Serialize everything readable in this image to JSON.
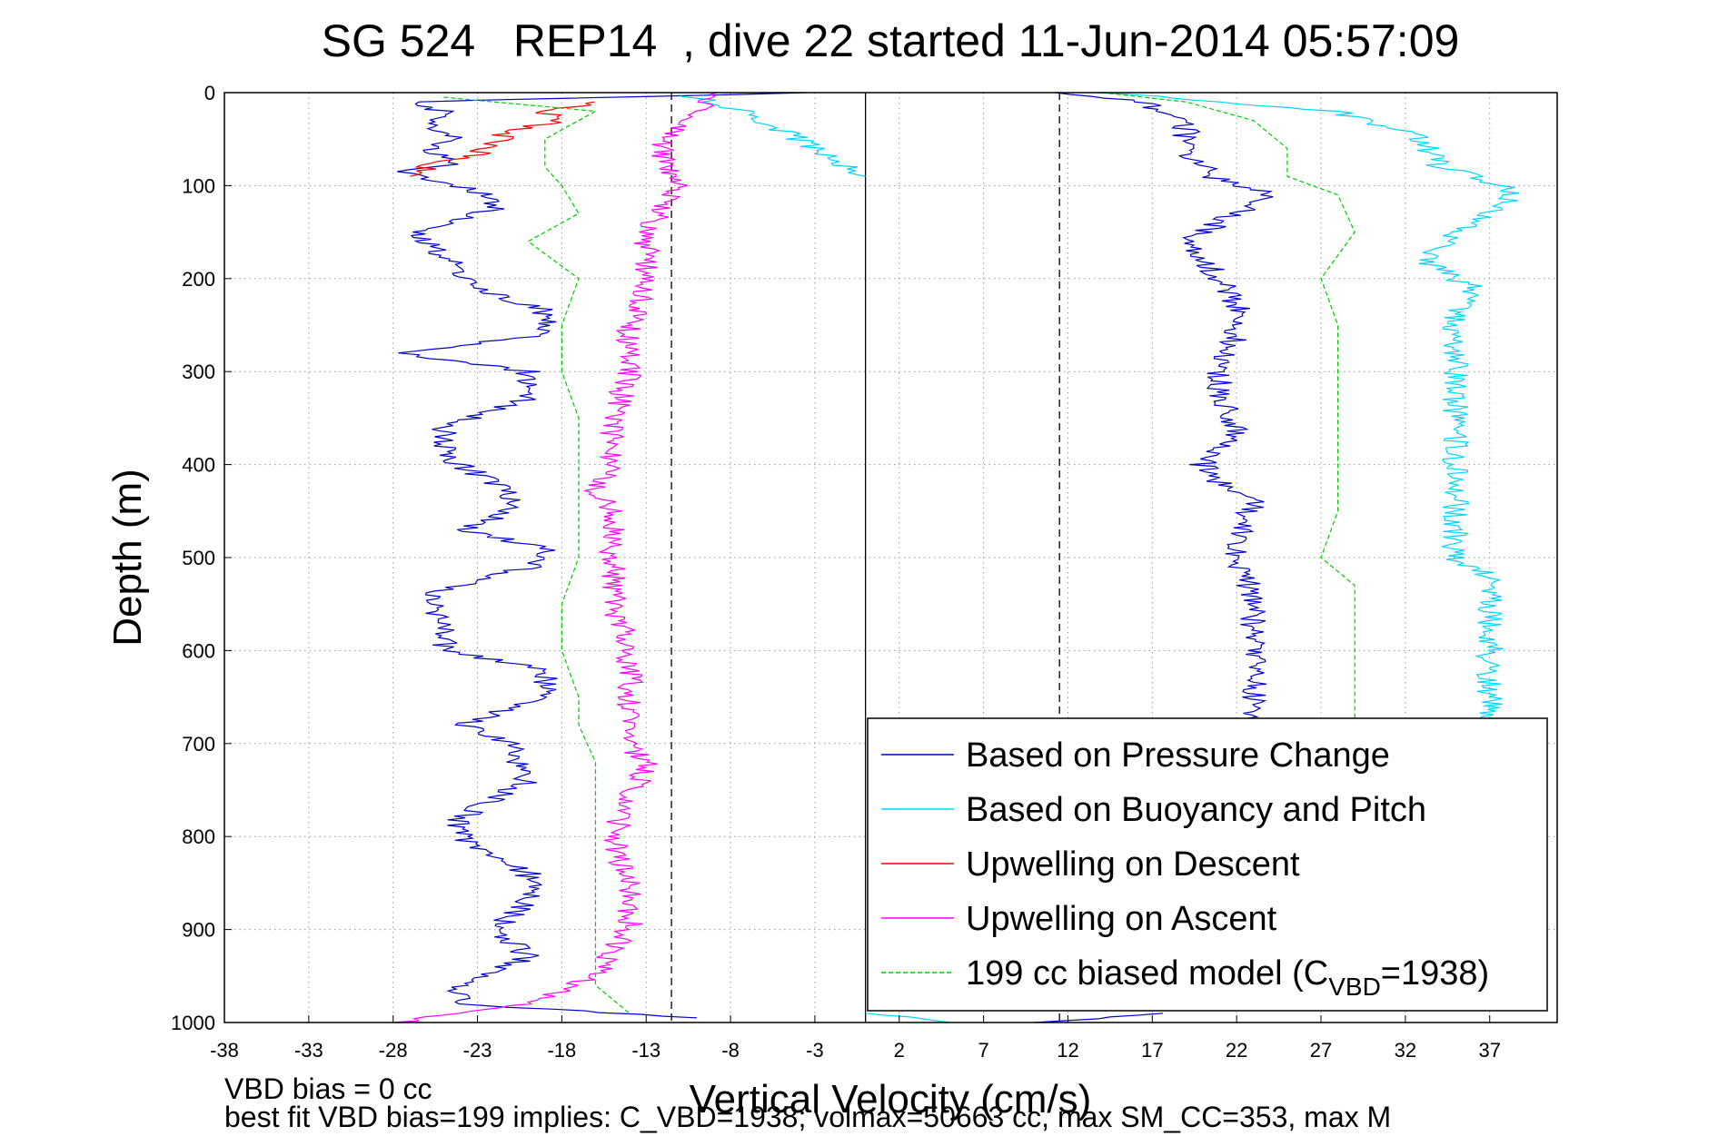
{
  "chart_data": {
    "type": "line",
    "title": "SG 524   REP14  , dive 22 started 11-Jun-2014 05:57:09",
    "xlabel": "Vertical Velocity (cm/s)",
    "ylabel": "Depth (m)",
    "xlim": [
      -38,
      41
    ],
    "ylim": [
      0,
      1000
    ],
    "y_reversed": true,
    "grid": true,
    "xticks": [
      -38,
      -33,
      -28,
      -23,
      -18,
      -13,
      -8,
      -3,
      2,
      7,
      12,
      17,
      22,
      27,
      32,
      37
    ],
    "yticks": [
      0,
      100,
      200,
      300,
      400,
      500,
      600,
      700,
      800,
      900,
      1000
    ],
    "reference_lines": [
      {
        "x": -11.5,
        "style": "dashed"
      },
      {
        "x": 0,
        "style": "solid"
      },
      {
        "x": 11.5,
        "style": "dashed"
      }
    ],
    "legend_position": "bottom-right",
    "series": [
      {
        "name": "Based on Pressure Change",
        "color": "#0000cc",
        "style": "solid",
        "segments": [
          {
            "depth": [
              0,
              10,
              20,
              35,
              50,
              60,
              75,
              85,
              95,
              105,
              125,
              150,
              175,
              210,
              235,
              260,
              280,
              300,
              330,
              360,
              390,
              410,
              430,
              450,
              470,
              490,
              510,
              540,
              570,
              600,
              620,
              650,
              680,
              700,
              740,
              780,
              800,
              840,
              870,
              900,
              930,
              960,
              980,
              995
            ],
            "velocity": [
              -3,
              -27,
              -25,
              -26,
              -24,
              -26,
              -24,
              -28,
              -25,
              -23,
              -22,
              -27,
              -25,
              -23,
              -19,
              -19,
              -28,
              -20,
              -20,
              -25,
              -25,
              -23,
              -21,
              -21,
              -24,
              -19,
              -20,
              -26,
              -25,
              -25,
              -19,
              -19,
              -24,
              -21,
              -20,
              -24,
              -24,
              -20,
              -20,
              -22,
              -20,
              -24,
              -24,
              -10
            ]
          },
          {
            "depth": [
              0,
              10,
              20,
              40,
              60,
              80,
              95,
              110,
              140,
              160,
              180,
              200,
              230,
              260,
              290,
              320,
              360,
              400,
              420,
              440,
              480,
              500,
              540,
              580,
              620,
              660,
              675
            ],
            "velocity": [
              12,
              16,
              18,
              19,
              19,
              20,
              21,
              24,
              21,
              19,
              20,
              21,
              22,
              22,
              21,
              21,
              22,
              20,
              21,
              23,
              22,
              22,
              23,
              23,
              23,
              23,
              23
            ]
          },
          {
            "depth": [
              990,
              1000
            ],
            "velocity": [
              18,
              10
            ]
          }
        ]
      },
      {
        "name": "Based on Buoyancy and Pitch",
        "color": "#00d4ff",
        "style": "solid",
        "segments": [
          {
            "depth": [
              2,
              20,
              40,
              60,
              90
            ],
            "velocity": [
              -11,
              -7,
              -5,
              -3,
              0
            ]
          },
          {
            "depth": [
              0,
              20,
              50,
              80,
              100,
              120,
              150,
              180,
              210,
              240,
              280,
              320,
              360,
              400,
              430,
              460,
              500,
              520,
              560,
              600,
              640,
              675
            ],
            "velocity": [
              14,
              28,
              33,
              34,
              38,
              38,
              35,
              33,
              36,
              35,
              35,
              35,
              35,
              35,
              35,
              35,
              35,
              37,
              37,
              37,
              37,
              37
            ]
          },
          {
            "depth": [
              990,
              1000
            ],
            "velocity": [
              0,
              5
            ]
          }
        ]
      },
      {
        "name": "Upwelling on Descent",
        "color": "#ff0000",
        "style": "solid",
        "segments": [
          {
            "depth": [
              10,
              15,
              20,
              30,
              40,
              55,
              65,
              70,
              80,
              90
            ],
            "velocity": [
              -16,
              -17,
              -19,
              -18,
              -21,
              -22,
              -23,
              -24,
              -26,
              -27
            ]
          }
        ]
      },
      {
        "name": "Upwelling on Ascent",
        "color": "#ff00ff",
        "style": "solid",
        "segments": [
          {
            "depth": [
              0,
              20,
              50,
              80,
              100,
              150,
              200,
              250,
              300,
              350,
              400,
              430,
              450,
              500,
              550,
              600,
              650,
              700,
              720,
              760,
              800,
              850,
              900,
              950,
              980,
              1000
            ],
            "velocity": [
              -9,
              -10,
              -12,
              -12,
              -11,
              -13,
              -13,
              -14,
              -14,
              -15,
              -15,
              -16,
              -15,
              -15,
              -15,
              -14,
              -14,
              -14,
              -13,
              -14,
              -15,
              -14,
              -14,
              -16,
              -20,
              -28
            ]
          }
        ]
      },
      {
        "name": "199 cc biased model",
        "legend_suffix": "(CVBD=1938)",
        "color": "#00cc00",
        "style": "dashed",
        "segments": [
          {
            "depth": [
              5,
              20,
              50,
              80,
              100,
              130,
              160,
              200,
              250,
              300,
              350,
              380,
              420,
              460,
              500,
              550,
              600,
              650,
              680,
              720,
              760,
              800,
              840,
              880,
              920,
              960,
              990
            ],
            "velocity": [
              -25,
              -16,
              -19,
              -19,
              -18,
              -17,
              -20,
              -17,
              -18,
              -18,
              -17,
              -17,
              -17,
              -17,
              -17,
              -18,
              -18,
              -17,
              -17,
              -16,
              -16,
              -16,
              -16,
              -16,
              -16,
              -16,
              -14
            ]
          },
          {
            "depth": [
              0,
              10,
              30,
              60,
              90,
              110,
              150,
              200,
              250,
              300,
              340,
              380,
              420,
              450,
              500,
              530,
              580,
              620,
              660,
              675
            ],
            "velocity": [
              14,
              19,
              23,
              25,
              25,
              28,
              29,
              27,
              28,
              28,
              28,
              28,
              28,
              28,
              27,
              29,
              29,
              29,
              29,
              29
            ]
          }
        ]
      }
    ]
  },
  "footer": {
    "line1": "VBD bias = 0 cc",
    "line2": "best fit VBD bias=199 implies: C_VBD=1938; volmax=50663 cc, max SM_CC=353, max M"
  }
}
